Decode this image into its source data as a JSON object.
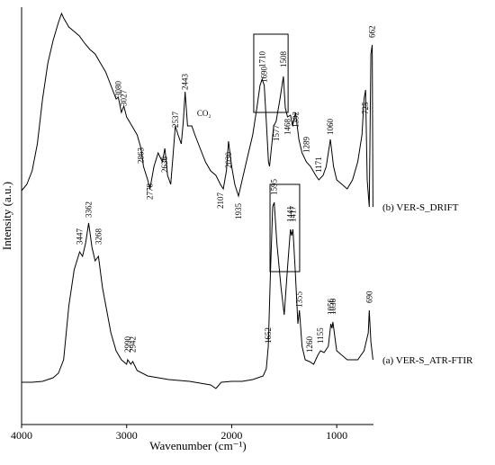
{
  "chart_data": {
    "type": "line",
    "xlabel": "Wavenumber (cm⁻¹)",
    "ylabel": "Intensity (a.u.)",
    "xlim": [
      4000,
      650
    ],
    "ylim": [
      0,
      464
    ],
    "xticks": [
      4000,
      3000,
      2000,
      1000
    ],
    "series": [
      {
        "name": "(b) VER-S_DRIFT",
        "color": "#000000",
        "x": [
          4000,
          3950,
          3900,
          3850,
          3800,
          3750,
          3700,
          3650,
          3620,
          3600,
          3550,
          3500,
          3450,
          3400,
          3350,
          3300,
          3250,
          3200,
          3150,
          3100,
          3080,
          3050,
          3027,
          3000,
          2950,
          2900,
          2863,
          2840,
          2800,
          2778,
          2740,
          2700,
          2660,
          2636,
          2610,
          2580,
          2560,
          2537,
          2510,
          2480,
          2460,
          2443,
          2420,
          2380,
          2350,
          2300,
          2250,
          2200,
          2150,
          2107,
          2080,
          2050,
          2030,
          2000,
          1970,
          1935,
          1900,
          1850,
          1800,
          1760,
          1730,
          1710,
          1690,
          1670,
          1650,
          1640,
          1600,
          1577,
          1540,
          1508,
          1490,
          1468,
          1440,
          1420,
          1392,
          1360,
          1330,
          1289,
          1250,
          1200,
          1171,
          1130,
          1100,
          1060,
          1030,
          1000,
          950,
          900,
          850,
          800,
          760,
          740,
          725,
          710,
          690,
          675,
          662,
          655
        ],
        "values": [
          260,
          267,
          282,
          312,
          362,
          402,
          427,
          447,
          457,
          452,
          442,
          437,
          432,
          424,
          417,
          412,
          402,
          392,
          377,
          362,
          364,
          347,
          354,
          342,
          332,
          322,
          307,
          287,
          272,
          262,
          287,
          302,
          292,
          307,
          277,
          267,
          297,
          332,
          322,
          312,
          337,
          370,
          332,
          332,
          322,
          307,
          292,
          282,
          277,
          267,
          262,
          282,
          315,
          287,
          267,
          254,
          272,
          297,
          322,
          352,
          377,
          384,
          377,
          337,
          292,
          287,
          332,
          337,
          362,
          387,
          352,
          342,
          344,
          332,
          347,
          317,
          302,
          292,
          287,
          277,
          272,
          277,
          287,
          317,
          287,
          272,
          267,
          262,
          272,
          292,
          322,
          362,
          372,
          272,
          242,
          412,
          422,
          242
        ]
      },
      {
        "name": "(a) VER-S_ATR-FTIR",
        "color": "#000000",
        "x": [
          4000,
          3900,
          3800,
          3700,
          3650,
          3600,
          3550,
          3500,
          3447,
          3420,
          3390,
          3362,
          3330,
          3300,
          3268,
          3230,
          3150,
          3100,
          3050,
          3000,
          2990,
          2960,
          2942,
          2900,
          2800,
          2600,
          2400,
          2200,
          2150,
          2100,
          2000,
          1900,
          1800,
          1700,
          1670,
          1652,
          1630,
          1610,
          1595,
          1570,
          1530,
          1500,
          1470,
          1441,
          1430,
          1417,
          1395,
          1370,
          1355,
          1330,
          1300,
          1260,
          1220,
          1180,
          1155,
          1120,
          1080,
          1056,
          1045,
          1036,
          1000,
          900,
          800,
          740,
          700,
          690,
          675,
          655
        ],
        "values": [
          47,
          47,
          48,
          52,
          57,
          72,
          132,
          172,
          192,
          187,
          202,
          224,
          197,
          182,
          187,
          152,
          102,
          82,
          72,
          67,
          72,
          67,
          70,
          60,
          54,
          50,
          48,
          44,
          40,
          47,
          48,
          48,
          50,
          54,
          62,
          87,
          172,
          242,
          247,
          202,
          152,
          122,
          172,
          217,
          210,
          217,
          172,
          112,
          127,
          87,
          72,
          70,
          67,
          77,
          82,
          80,
          87,
          112,
          107,
          114,
          82,
          72,
          72,
          82,
          102,
          127,
          92,
          72
        ]
      }
    ],
    "annotations": [
      {
        "label": "3080",
        "x": 3080,
        "y": 364
      },
      {
        "label": "3027",
        "x": 3027,
        "y": 354
      },
      {
        "label": "2863",
        "x": 2863,
        "y": 290
      },
      {
        "label": "2778",
        "x": 2778,
        "y": 250
      },
      {
        "label": "2636",
        "x": 2636,
        "y": 280
      },
      {
        "label": "2537",
        "x": 2537,
        "y": 330
      },
      {
        "label": "2443",
        "x": 2443,
        "y": 372
      },
      {
        "label": "2107",
        "x": 2107,
        "y": 240
      },
      {
        "label": "2030",
        "x": 2030,
        "y": 285
      },
      {
        "label": "1935",
        "x": 1935,
        "y": 228
      },
      {
        "label": "1710",
        "x": 1710,
        "y": 397
      },
      {
        "label": "1690",
        "x": 1690,
        "y": 380
      },
      {
        "label": "1577",
        "x": 1577,
        "y": 315
      },
      {
        "label": "1508",
        "x": 1508,
        "y": 397
      },
      {
        "label": "1468",
        "x": 1468,
        "y": 322
      },
      {
        "label": "1392",
        "x": 1392,
        "y": 330
      },
      {
        "label": "1289",
        "x": 1289,
        "y": 302
      },
      {
        "label": "1171",
        "x": 1171,
        "y": 280
      },
      {
        "label": "1060",
        "x": 1060,
        "y": 322
      },
      {
        "label": "725",
        "x": 725,
        "y": 345
      },
      {
        "label": "662",
        "x": 662,
        "y": 430
      },
      {
        "label": "3447",
        "x": 3447,
        "y": 200
      },
      {
        "label": "3362",
        "x": 3362,
        "y": 230
      },
      {
        "label": "3268",
        "x": 3268,
        "y": 200
      },
      {
        "label": "2990",
        "x": 2990,
        "y": 80
      },
      {
        "label": "2942",
        "x": 2942,
        "y": 80
      },
      {
        "label": "1652",
        "x": 1652,
        "y": 90
      },
      {
        "label": "1595",
        "x": 1595,
        "y": 255
      },
      {
        "label": "1441",
        "x": 1441,
        "y": 225
      },
      {
        "label": "1417",
        "x": 1417,
        "y": 225
      },
      {
        "label": "1355",
        "x": 1355,
        "y": 130
      },
      {
        "label": "1260",
        "x": 1260,
        "y": 80
      },
      {
        "label": "1155",
        "x": 1155,
        "y": 90
      },
      {
        "label": "1056",
        "x": 1056,
        "y": 122
      },
      {
        "label": "1036",
        "x": 1036,
        "y": 122
      },
      {
        "label": "690",
        "x": 690,
        "y": 135
      }
    ],
    "text_annotations": [
      {
        "label": "CO₂",
        "x": 2330,
        "y": 343
      }
    ],
    "boxes": [
      {
        "x": [
          1790,
          1463
        ],
        "y": [
          434,
          347
        ]
      },
      {
        "x": [
          1635,
          1353
        ],
        "y": [
          267,
          170
        ]
      }
    ]
  }
}
